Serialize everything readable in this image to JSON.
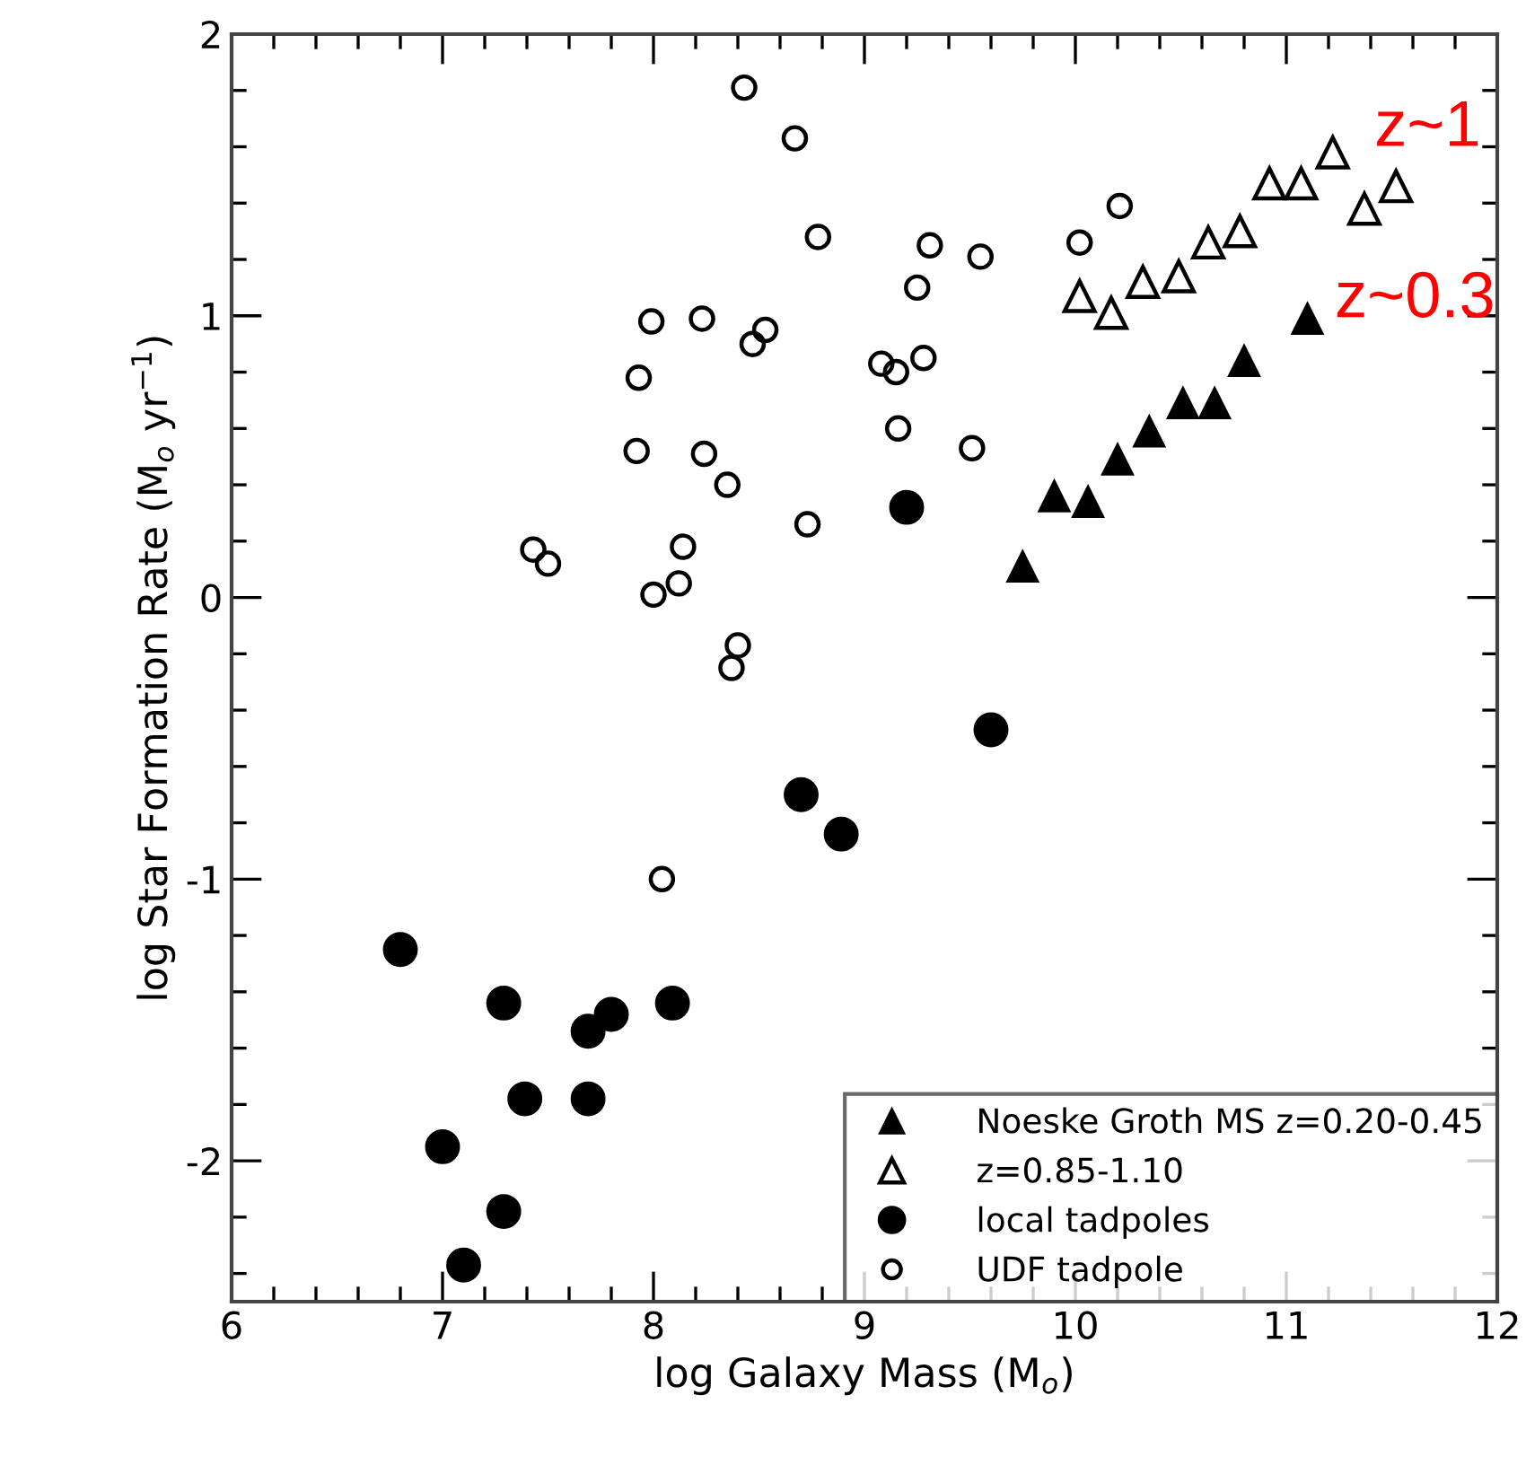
{
  "chart_data": {
    "type": "scatter",
    "xlabel": "log Galaxy Mass (M$_{o}$)",
    "ylabel": "log Star Formation Rate (M$_{o}$ yr$^{−1}$)",
    "xlim": [
      6,
      12
    ],
    "ylim": [
      -2.5,
      2
    ],
    "xticks": [
      6,
      7,
      8,
      9,
      10,
      11,
      12
    ],
    "yticks": [
      {
        "value": -2,
        "label": "-2"
      },
      {
        "value": -1,
        "label": "-1"
      },
      0,
      1,
      2
    ],
    "grid": false,
    "legend": "bottom right",
    "series": [
      {
        "name": "Noeske Groth MS z=0.20-0.45",
        "color": "#000000",
        "marker": "triangle",
        "x": [
          9.75,
          9.9,
          10.06,
          10.2,
          10.35,
          10.51,
          10.66,
          10.8,
          11.1
        ],
        "values": [
          0.11,
          0.36,
          0.34,
          0.49,
          0.59,
          0.69,
          0.69,
          0.84,
          0.99
        ]
      },
      {
        "name": "z=0.85-1.10",
        "color": "#000000",
        "marker": "triangle",
        "x": [
          10.02,
          10.17,
          10.32,
          10.49,
          10.63,
          10.78,
          10.92,
          11.07,
          11.22,
          11.37,
          11.52
        ],
        "values": [
          1.07,
          1.01,
          1.12,
          1.14,
          1.26,
          1.3,
          1.47,
          1.47,
          1.58,
          1.38,
          1.46
        ]
      },
      {
        "name": "local tadpoles",
        "color": "#000000",
        "marker": "circle",
        "x": [
          6.8,
          7.29,
          8.09,
          7.69,
          7.8,
          7.39,
          7.69,
          7.0,
          7.29,
          7.1,
          8.7,
          8.89,
          9.6,
          9.2
        ],
        "values": [
          -1.25,
          -1.44,
          -1.44,
          -1.54,
          -1.48,
          -1.78,
          -1.78,
          -1.95,
          -2.18,
          -2.37,
          -0.7,
          -0.84,
          -0.47,
          0.32
        ]
      },
      {
        "name": "UDF tadpole",
        "color": "#000000",
        "marker": "circle",
        "x": [
          8.43,
          8.67,
          8.78,
          7.99,
          8.23,
          8.53,
          8.47,
          7.93,
          7.92,
          8.24,
          8.35,
          8.73,
          7.43,
          7.5,
          8.14,
          8.12,
          8.0,
          8.4,
          8.37,
          8.04,
          9.31,
          9.25,
          9.55,
          9.08,
          9.15,
          9.28,
          9.16,
          9.51,
          10.02,
          10.21
        ],
        "values": [
          1.81,
          1.63,
          1.28,
          0.98,
          0.99,
          0.95,
          0.9,
          0.78,
          0.52,
          0.51,
          0.4,
          0.26,
          0.17,
          0.12,
          0.18,
          0.05,
          0.01,
          -0.17,
          -0.25,
          -1.0,
          1.25,
          1.1,
          1.21,
          0.83,
          0.8,
          0.85,
          0.6,
          0.53,
          1.26,
          1.39
        ]
      }
    ],
    "annotations": [
      "z~1",
      "z~0.3"
    ]
  }
}
